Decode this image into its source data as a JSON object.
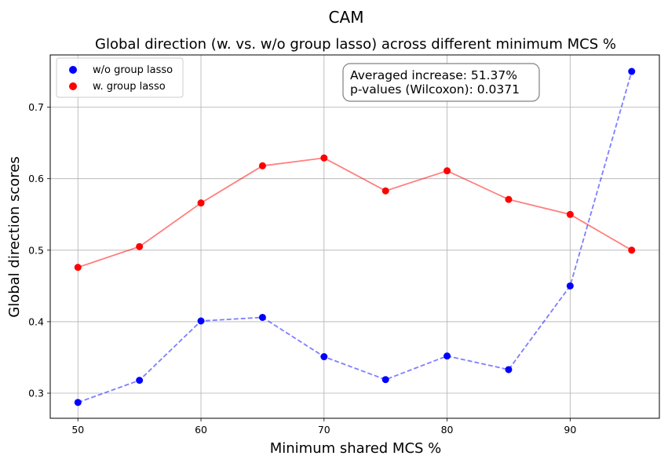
{
  "chart_data": {
    "type": "line",
    "suptitle": "CAM",
    "title": "Global direction (w. vs. w/o group lasso) across different minimum MCS %",
    "xlabel": "Minimum shared MCS %",
    "ylabel": "Global direction scores",
    "xlim": [
      47.75,
      97.25
    ],
    "ylim": [
      0.2649,
      0.7731
    ],
    "xticks": [
      50,
      60,
      70,
      80,
      90
    ],
    "yticks": [
      0.3,
      0.4,
      0.5,
      0.6,
      0.7
    ],
    "grid": true,
    "x": [
      50,
      55,
      60,
      65,
      70,
      75,
      80,
      85,
      90,
      95
    ],
    "series": [
      {
        "name": "w/o group lasso",
        "color": "#0000ff",
        "line_style": "dashed",
        "values": [
          0.287,
          0.318,
          0.401,
          0.406,
          0.351,
          0.319,
          0.352,
          0.333,
          0.45,
          0.75
        ]
      },
      {
        "name": "w. group lasso",
        "color": "#ff0000",
        "line_style": "solid",
        "values": [
          0.476,
          0.505,
          0.566,
          0.618,
          0.629,
          0.583,
          0.611,
          0.571,
          0.55,
          0.5
        ]
      }
    ],
    "legend_position": "top-left",
    "annotation": {
      "line1": "Averaged increase: 51.37%",
      "line2": "p-values (Wilcoxon): 0.0371",
      "color": "#008000"
    }
  }
}
